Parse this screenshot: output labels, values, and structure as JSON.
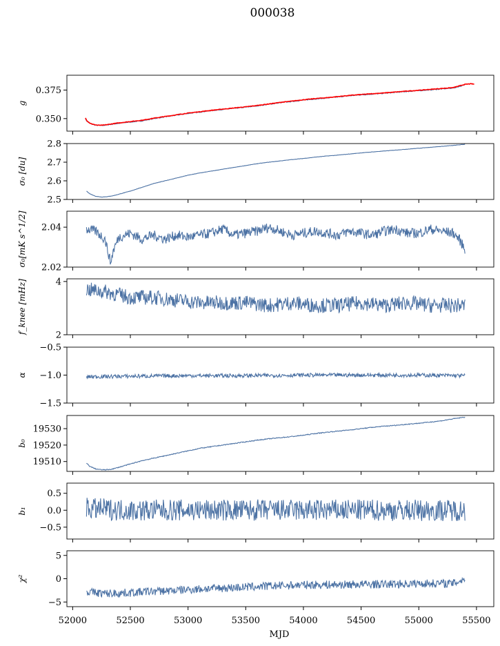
{
  "figure": {
    "title": "000038",
    "xlabel": "MJD",
    "x_ticks": [
      "52000",
      "52500",
      "53000",
      "53500",
      "54000",
      "54500",
      "55000",
      "55500"
    ]
  },
  "colors": {
    "series": "#4c72a4",
    "overlay": "#ff0000",
    "axes": "#000000"
  },
  "chart_data": [
    {
      "type": "line",
      "ylabel": "g",
      "xlim": [
        51950,
        55650
      ],
      "ylim": [
        0.339,
        0.388
      ],
      "yticks": [
        {
          "v": 0.35,
          "label": "0.350"
        },
        {
          "v": 0.375,
          "label": "0.375"
        }
      ],
      "series": [
        {
          "style": "blue",
          "x": [
            52110,
            52130,
            52170,
            52200,
            52230,
            52250,
            52280,
            52300,
            52350,
            52400,
            52500,
            52600,
            52700,
            52800,
            52900,
            53000,
            53100,
            53200,
            53300,
            53400,
            53500,
            53600,
            53700,
            53800,
            53900,
            54000,
            54100,
            54200,
            54300,
            54400,
            54500,
            54600,
            54700,
            54800,
            54900,
            55000,
            55100,
            55200,
            55300,
            55400
          ],
          "y": [
            0.3495,
            0.347,
            0.345,
            0.3442,
            0.344,
            0.344,
            0.3442,
            0.3445,
            0.3452,
            0.3458,
            0.347,
            0.348,
            0.35,
            0.3515,
            0.353,
            0.3545,
            0.3557,
            0.357,
            0.358,
            0.359,
            0.36,
            0.3612,
            0.3625,
            0.364,
            0.365,
            0.3662,
            0.3672,
            0.368,
            0.369,
            0.37,
            0.3708,
            0.3715,
            0.3722,
            0.373,
            0.3738,
            0.3745,
            0.3752,
            0.376,
            0.3768,
            0.3795
          ]
        },
        {
          "style": "red",
          "x": [
            52110,
            52125,
            52150,
            52180,
            52210,
            52240,
            52270,
            52300,
            52350,
            52400,
            52500,
            52600,
            52700,
            52800,
            52900,
            53000,
            53100,
            53200,
            53300,
            53400,
            53500,
            53600,
            53700,
            53800,
            53900,
            54000,
            54100,
            54200,
            54300,
            54400,
            54500,
            54600,
            54700,
            54800,
            54900,
            55000,
            55100,
            55200,
            55300,
            55400,
            55450,
            55480
          ],
          "y": [
            0.3505,
            0.348,
            0.346,
            0.3448,
            0.3443,
            0.3441,
            0.3443,
            0.3447,
            0.3455,
            0.3462,
            0.3474,
            0.3485,
            0.3503,
            0.3518,
            0.3533,
            0.3548,
            0.356,
            0.3572,
            0.3583,
            0.3593,
            0.3603,
            0.3615,
            0.3628,
            0.3642,
            0.3653,
            0.3665,
            0.3675,
            0.3683,
            0.3693,
            0.3703,
            0.3711,
            0.3718,
            0.3725,
            0.3733,
            0.3741,
            0.3748,
            0.3756,
            0.3764,
            0.3772,
            0.38,
            0.3805,
            0.3802
          ]
        }
      ]
    },
    {
      "type": "line",
      "ylabel": "σ₀ [du]",
      "xlim": [
        51950,
        55650
      ],
      "ylim": [
        2.5,
        2.8
      ],
      "yticks": [
        {
          "v": 2.5,
          "label": "2.5"
        },
        {
          "v": 2.6,
          "label": "2.6"
        },
        {
          "v": 2.7,
          "label": "2.7"
        },
        {
          "v": 2.8,
          "label": "2.8"
        }
      ],
      "series": [
        {
          "style": "blue",
          "x": [
            52120,
            52150,
            52200,
            52250,
            52300,
            52350,
            52400,
            52500,
            52600,
            52700,
            52800,
            52900,
            53000,
            53100,
            53200,
            53300,
            53400,
            53500,
            53600,
            53700,
            53800,
            53900,
            54000,
            54100,
            54200,
            54300,
            54400,
            54500,
            54600,
            54700,
            54800,
            54900,
            55000,
            55100,
            55200,
            55300,
            55400
          ],
          "y": [
            2.545,
            2.53,
            2.517,
            2.513,
            2.515,
            2.52,
            2.528,
            2.545,
            2.565,
            2.585,
            2.6,
            2.615,
            2.63,
            2.642,
            2.652,
            2.662,
            2.672,
            2.682,
            2.692,
            2.7,
            2.707,
            2.714,
            2.72,
            2.727,
            2.733,
            2.738,
            2.744,
            2.75,
            2.755,
            2.76,
            2.765,
            2.77,
            2.775,
            2.78,
            2.785,
            2.79,
            2.796
          ]
        }
      ]
    },
    {
      "type": "line",
      "ylabel": "σ₀[mK s^1/2]",
      "xlim": [
        51950,
        55650
      ],
      "ylim": [
        2.02,
        2.048
      ],
      "yticks": [
        {
          "v": 2.02,
          "label": "2.02"
        },
        {
          "v": 2.04,
          "label": "2.04"
        }
      ],
      "series": [
        {
          "style": "blue",
          "x": [
            52120,
            52200,
            52280,
            52330,
            52350,
            52400,
            52500,
            52600,
            52700,
            52800,
            52900,
            53000,
            53100,
            53200,
            53300,
            53400,
            53500,
            53600,
            53700,
            53800,
            53900,
            54000,
            54100,
            54200,
            54300,
            54400,
            54500,
            54600,
            54700,
            54800,
            54900,
            55000,
            55100,
            55200,
            55300,
            55350,
            55400
          ],
          "y": [
            2.039,
            2.038,
            2.034,
            2.022,
            2.028,
            2.035,
            2.037,
            2.034,
            2.036,
            2.034,
            2.036,
            2.035,
            2.036,
            2.037,
            2.039,
            2.036,
            2.037,
            2.038,
            2.04,
            2.038,
            2.036,
            2.037,
            2.038,
            2.037,
            2.036,
            2.038,
            2.037,
            2.036,
            2.038,
            2.039,
            2.037,
            2.037,
            2.039,
            2.038,
            2.037,
            2.034,
            2.029
          ]
        }
      ]
    },
    {
      "type": "line",
      "ylabel": "f_knee [mHz]",
      "xlim": [
        51950,
        55650
      ],
      "ylim": [
        2,
        4.1
      ],
      "yticks": [
        {
          "v": 2,
          "label": "2"
        },
        {
          "v": 4,
          "label": "4"
        }
      ],
      "series": [
        {
          "style": "blue",
          "x": [
            52120,
            52300,
            52500,
            52700,
            52900,
            53100,
            53300,
            53500,
            53700,
            53900,
            54100,
            54300,
            54500,
            54700,
            54900,
            55100,
            55300,
            55400
          ],
          "y": [
            3.7,
            3.6,
            3.4,
            3.4,
            3.3,
            3.2,
            3.2,
            3.2,
            3.1,
            3.2,
            3.1,
            3.1,
            3.2,
            3.1,
            3.2,
            3.1,
            3.1,
            3.1
          ]
        }
      ]
    },
    {
      "type": "line",
      "ylabel": "α",
      "xlim": [
        51950,
        55650
      ],
      "ylim": [
        -1.5,
        -0.5
      ],
      "yticks": [
        {
          "v": -1.5,
          "label": "−1.5"
        },
        {
          "v": -1.0,
          "label": "−1.0"
        },
        {
          "v": -0.5,
          "label": "−0.5"
        }
      ],
      "series": [
        {
          "style": "blue",
          "x": [
            52120,
            52500,
            53000,
            53500,
            54000,
            54500,
            55000,
            55400
          ],
          "y": [
            -1.03,
            -1.02,
            -1.01,
            -1.01,
            -1.0,
            -1.0,
            -1.0,
            -1.01
          ]
        }
      ]
    },
    {
      "type": "line",
      "ylabel": "b₀",
      "xlim": [
        51950,
        55650
      ],
      "ylim": [
        19504,
        19538
      ],
      "yticks": [
        {
          "v": 19510,
          "label": "19510"
        },
        {
          "v": 19520,
          "label": "19520"
        },
        {
          "v": 19530,
          "label": "19530"
        }
      ],
      "series": [
        {
          "style": "blue",
          "x": [
            52120,
            52150,
            52200,
            52250,
            52300,
            52350,
            52400,
            52500,
            52600,
            52700,
            52800,
            52900,
            53000,
            53100,
            53200,
            53300,
            53400,
            53500,
            53600,
            53700,
            53800,
            53900,
            54000,
            54100,
            54200,
            54300,
            54400,
            54500,
            54600,
            54700,
            54800,
            54900,
            55000,
            55100,
            55200,
            55300,
            55400
          ],
          "y": [
            19509,
            19507,
            19505.5,
            19505,
            19505,
            19505.5,
            19506.5,
            19508.5,
            19510.5,
            19512,
            19513.5,
            19515,
            19516.5,
            19518,
            19519,
            19520,
            19521,
            19522,
            19523,
            19523.8,
            19524.5,
            19525.2,
            19526,
            19527,
            19527.8,
            19528.5,
            19529.2,
            19530,
            19530.8,
            19531.5,
            19532,
            19532.7,
            19533.3,
            19534,
            19534.8,
            19536,
            19537
          ]
        }
      ]
    },
    {
      "type": "line",
      "ylabel": "b₁",
      "xlim": [
        51950,
        55650
      ],
      "ylim": [
        -0.85,
        0.8
      ],
      "yticks": [
        {
          "v": -0.5,
          "label": "−0.5"
        },
        {
          "v": 0.0,
          "label": "0.0"
        },
        {
          "v": 0.5,
          "label": "0.5"
        }
      ],
      "series": [
        {
          "style": "blue",
          "x": [
            52120,
            52500,
            53000,
            53500,
            54000,
            54500,
            55000,
            55400
          ],
          "y": [
            0.05,
            0.0,
            0.0,
            0.0,
            0.0,
            0.0,
            0.0,
            0.0
          ]
        }
      ]
    },
    {
      "type": "line",
      "ylabel": "χ²",
      "xlim": [
        51950,
        55650
      ],
      "ylim": [
        -6,
        6
      ],
      "yticks": [
        {
          "v": -5,
          "label": "−5"
        },
        {
          "v": 0,
          "label": "0"
        },
        {
          "v": 5,
          "label": "5"
        }
      ],
      "series": [
        {
          "style": "blue",
          "x": [
            52120,
            52300,
            52500,
            52700,
            52900,
            53100,
            53300,
            53500,
            53700,
            53900,
            54100,
            54300,
            54500,
            54700,
            54900,
            55100,
            55300,
            55400
          ],
          "y": [
            -2.8,
            -3.2,
            -3.0,
            -2.7,
            -2.5,
            -2.2,
            -2.0,
            -1.8,
            -1.6,
            -1.4,
            -1.3,
            -1.3,
            -1.2,
            -1.2,
            -1.1,
            -1.0,
            -1.0,
            0.0
          ]
        }
      ]
    }
  ]
}
